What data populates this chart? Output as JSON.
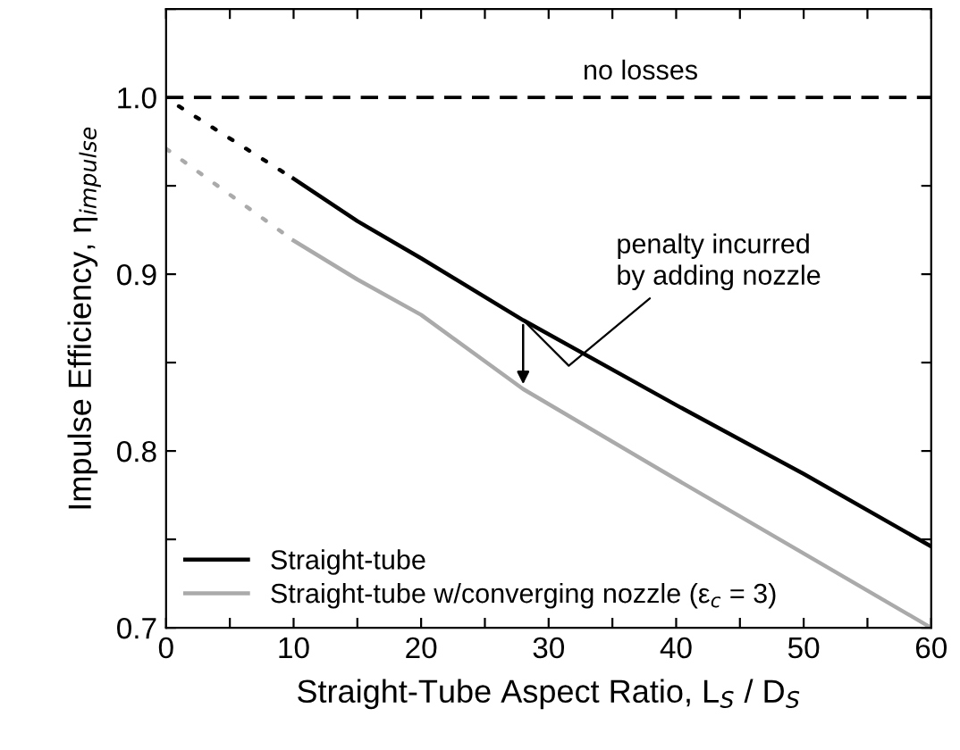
{
  "chart_data": {
    "type": "line",
    "xlabel": "Straight-Tube Aspect Ratio, L$_{S}$ / D$_{S}$",
    "ylabel": "Impulse Efficiency, η$_{impulse}$",
    "xlim": [
      0,
      60
    ],
    "ylim": [
      0.7,
      1.05
    ],
    "xticks": [
      0,
      {
        "value": 5,
        "label": null
      },
      10,
      {
        "value": 15,
        "label": null
      },
      20,
      {
        "value": 25,
        "label": null
      },
      30,
      {
        "value": 35,
        "label": null
      },
      40,
      {
        "value": 45,
        "label": null
      },
      50,
      {
        "value": 55,
        "label": null
      },
      60
    ],
    "yticks": [
      0.7,
      {
        "value": 0.75,
        "label": null
      },
      0.8,
      {
        "value": 0.85,
        "label": null
      },
      0.9,
      {
        "value": 0.95,
        "label": null
      },
      {
        "value": 1.0,
        "label": "1.0"
      },
      {
        "value": 1.05,
        "label": null
      }
    ],
    "series": [
      {
        "name": "Straight-tube",
        "color": "#000000",
        "x": [
          10,
          15,
          20,
          28,
          40,
          50,
          60
        ],
        "values": [
          0.954,
          0.93,
          0.909,
          0.874,
          0.826,
          0.787,
          0.746
        ],
        "line_style": "solid"
      },
      {
        "name": "Straight-tube w/converging nozzle (ε$_{c}$ = 3)",
        "color": "#aaaaaa",
        "x": [
          10,
          15,
          20,
          28,
          40,
          50,
          60
        ],
        "values": [
          0.919,
          0.897,
          0.877,
          0.835,
          0.784,
          0.742,
          0.7
        ],
        "line_style": "solid"
      },
      {
        "color": "#000000",
        "x": [
          1,
          10
        ],
        "values": [
          0.995,
          0.954
        ],
        "line_style": "dotted"
      },
      {
        "color": "#aaaaaa",
        "x": [
          0,
          10
        ],
        "values": [
          0.971,
          0.919
        ],
        "line_style": "dotted"
      }
    ],
    "ref_lines": [
      {
        "axis": "y",
        "value": 1.0,
        "label": "no losses",
        "color": "#000000",
        "line_style": "dashed"
      }
    ],
    "annotations": [
      {
        "text": "penalty incurred\nby adding nozzle",
        "x": 28,
        "y": 0.874
      }
    ],
    "legend": "bottom left",
    "grid": false,
    "marker": "none"
  }
}
